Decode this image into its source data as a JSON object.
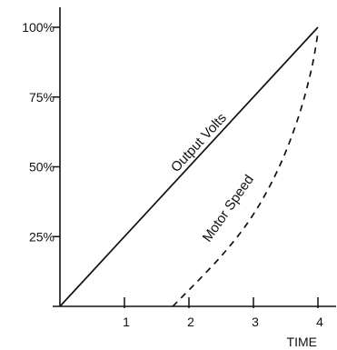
{
  "chart_data": {
    "type": "line",
    "title": "",
    "xlabel": "TIME",
    "ylabel": "",
    "xlim": [
      0,
      4.25
    ],
    "ylim": [
      0,
      100
    ],
    "grid": false,
    "x_ticks": [
      {
        "value": 1,
        "label": "1"
      },
      {
        "value": 2,
        "label": "2"
      },
      {
        "value": 3,
        "label": "3"
      },
      {
        "value": 4,
        "label": "4"
      }
    ],
    "y_ticks": [
      {
        "value": 25,
        "label": "25%"
      },
      {
        "value": 50,
        "label": "50%"
      },
      {
        "value": 75,
        "label": "75%"
      },
      {
        "value": 100,
        "label": "100%"
      }
    ],
    "series": [
      {
        "name": "Output Volts",
        "style": "solid",
        "color": "#111111",
        "x": [
          0,
          4
        ],
        "y": [
          0,
          100
        ]
      },
      {
        "name": "Motor Speed",
        "style": "dashed",
        "color": "#111111",
        "x": [
          1.75,
          2.5,
          3.0,
          3.4,
          3.7,
          3.9,
          4.0
        ],
        "y": [
          0,
          18,
          33,
          50,
          68,
          85,
          98
        ]
      }
    ]
  }
}
